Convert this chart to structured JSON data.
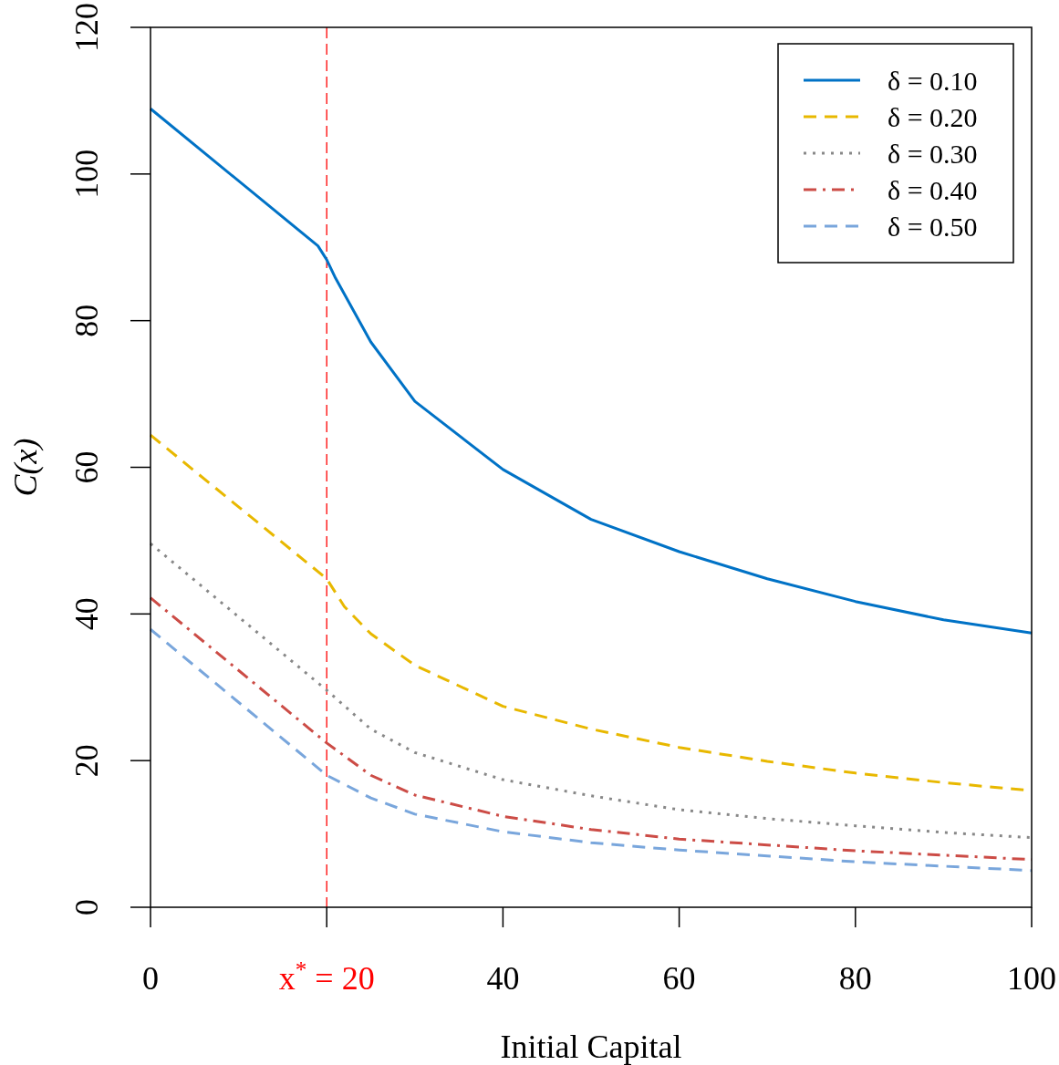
{
  "chart_data": {
    "type": "line",
    "xlabel": "Initial Capital",
    "ylabel": "C(x)",
    "xlim": [
      0,
      100
    ],
    "ylim": [
      0,
      120
    ],
    "xticks": [
      0,
      {
        "value": 20,
        "label": null
      },
      40,
      60,
      80,
      100
    ],
    "yticks": [
      0,
      20,
      40,
      60,
      80,
      100,
      120
    ],
    "grid": false,
    "legend": "top right",
    "marker": "none",
    "ref_lines": [
      {
        "axis": "x",
        "value": 20,
        "label": "x$^{*}$ = 20",
        "color": "#ff0000",
        "line_style": "dashed"
      }
    ],
    "series": [
      {
        "name": "δ = 0.10",
        "color": "#0072c6",
        "line_style": "solid",
        "x": [
          0,
          19,
          20,
          21,
          25,
          30,
          40,
          50,
          60,
          70,
          80,
          90,
          100
        ],
        "values": [
          108.9,
          90.2,
          88.3,
          85.8,
          77.1,
          69,
          59.7,
          52.9,
          48.5,
          44.8,
          41.7,
          39.2,
          37.4
        ]
      },
      {
        "name": "δ = 0.20",
        "color": "#e8b800",
        "line_style": "dashed",
        "x": [
          0,
          20,
          22,
          25,
          30,
          40,
          50,
          60,
          70,
          80,
          90,
          100
        ],
        "values": [
          64.4,
          44.8,
          41,
          37.3,
          33,
          27.4,
          24.3,
          21.8,
          19.9,
          18.3,
          17,
          15.9
        ]
      },
      {
        "name": "δ = 0.30",
        "color": "#888888",
        "line_style": "dotted",
        "x": [
          0,
          20,
          25,
          30,
          40,
          50,
          60,
          70,
          80,
          90,
          100
        ],
        "values": [
          49.6,
          29.6,
          24.3,
          21.1,
          17.4,
          15.2,
          13.3,
          12.1,
          11.1,
          10.2,
          9.5
        ]
      },
      {
        "name": "δ = 0.40",
        "color": "#cc4c46",
        "line_style": "dashdot",
        "x": [
          0,
          20,
          25,
          30,
          40,
          50,
          60,
          70,
          80,
          90,
          100
        ],
        "values": [
          42.2,
          22.4,
          18,
          15.3,
          12.4,
          10.6,
          9.3,
          8.5,
          7.7,
          7.1,
          6.5
        ]
      },
      {
        "name": "δ = 0.50",
        "color": "#79a6dc",
        "line_style": "dashed",
        "x": [
          0,
          20,
          25,
          30,
          40,
          50,
          60,
          70,
          80,
          90,
          100
        ],
        "values": [
          37.9,
          18,
          14.9,
          12.7,
          10.3,
          8.8,
          7.8,
          7,
          6.2,
          5.6,
          5
        ]
      }
    ]
  }
}
